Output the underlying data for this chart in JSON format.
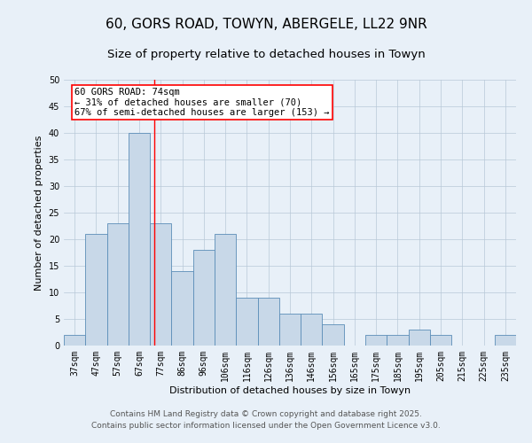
{
  "title": "60, GORS ROAD, TOWYN, ABERGELE, LL22 9NR",
  "subtitle": "Size of property relative to detached houses in Towyn",
  "xlabel": "Distribution of detached houses by size in Towyn",
  "ylabel": "Number of detached properties",
  "footer_line1": "Contains HM Land Registry data © Crown copyright and database right 2025.",
  "footer_line2": "Contains public sector information licensed under the Open Government Licence v3.0.",
  "categories": [
    "37sqm",
    "47sqm",
    "57sqm",
    "67sqm",
    "77sqm",
    "86sqm",
    "96sqm",
    "106sqm",
    "116sqm",
    "126sqm",
    "136sqm",
    "146sqm",
    "156sqm",
    "165sqm",
    "175sqm",
    "185sqm",
    "195sqm",
    "205sqm",
    "215sqm",
    "225sqm",
    "235sqm"
  ],
  "values": [
    2,
    21,
    23,
    40,
    23,
    14,
    18,
    21,
    9,
    9,
    6,
    6,
    4,
    0,
    2,
    2,
    3,
    2,
    0,
    0,
    2
  ],
  "bar_color": "#c8d8e8",
  "bar_edge_color": "#5b8db8",
  "background_color": "#e8f0f8",
  "red_line_index": 3.7,
  "annotation_line1": "60 GORS ROAD: 74sqm",
  "annotation_line2": "← 31% of detached houses are smaller (70)",
  "annotation_line3": "67% of semi-detached houses are larger (153) →",
  "annotation_box_color": "white",
  "annotation_box_edge_color": "red",
  "ylim": [
    0,
    50
  ],
  "yticks": [
    0,
    5,
    10,
    15,
    20,
    25,
    30,
    35,
    40,
    45,
    50
  ],
  "grid_color": "#b8c8d8",
  "title_fontsize": 11,
  "subtitle_fontsize": 9.5,
  "axis_label_fontsize": 8,
  "tick_fontsize": 7,
  "annotation_fontsize": 7.5,
  "footer_fontsize": 6.5
}
